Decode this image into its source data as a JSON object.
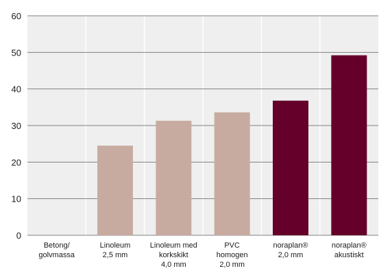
{
  "chart_data": {
    "type": "bar",
    "title": "",
    "xlabel": "",
    "ylabel": "",
    "ylim": [
      0,
      60
    ],
    "yticks": [
      "0",
      "10",
      "20",
      "30",
      "40",
      "50",
      "60"
    ],
    "grid": true,
    "categories": [
      [
        "Betong/",
        "golvmassa"
      ],
      [
        "Linoleum",
        "2,5 mm"
      ],
      [
        "Linoleum med",
        "korkskikt",
        "4,0 mm"
      ],
      [
        "PVC",
        "homogen",
        "2,0 mm"
      ],
      [
        "noraplan®",
        "2,0 mm"
      ],
      [
        "noraplan®",
        "akustiskt"
      ]
    ],
    "values": [
      0,
      24.5,
      31.3,
      33.6,
      36.8,
      49.2
    ],
    "colors": {
      "competitor": "#c8aba0",
      "highlight": "#64002a",
      "background": "#efefef",
      "grid": "#808080",
      "separator": "#ffffff"
    },
    "bar_colors": [
      "competitor",
      "competitor",
      "competitor",
      "competitor",
      "highlight",
      "highlight"
    ]
  }
}
